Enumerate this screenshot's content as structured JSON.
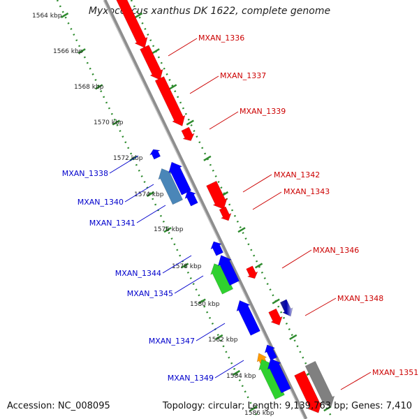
{
  "header": {
    "title": "Myxococcus xanthus DK 1622, complete genome"
  },
  "footer": {
    "accession": "Accession: NC_008095",
    "summary": "Topology: circular; Length: 9,139,763 bp; Genes: 7,410"
  },
  "colors": {
    "backbone": "#8e8e8e",
    "ticks": "#2e8b2e",
    "forward_label": "#cc0000",
    "reverse_label": "#0000cc"
  },
  "kbp_ticks": [
    "1564 kbp",
    "1566 kbp",
    "1568 kbp",
    "1570 kbp",
    "1572 kbp",
    "1574 kbp",
    "1576 kbp",
    "1578 kbp",
    "1580 kbp",
    "1582 kbp",
    "1584 kbp",
    "1586 kbp"
  ],
  "forward_genes": [
    {
      "label": "MXAN_1336"
    },
    {
      "label": "MXAN_1337"
    },
    {
      "label": "MXAN_1339"
    },
    {
      "label": "MXAN_1342"
    },
    {
      "label": "MXAN_1343"
    },
    {
      "label": "MXAN_1346"
    },
    {
      "label": "MXAN_1348"
    },
    {
      "label": "MXAN_1351"
    }
  ],
  "reverse_genes": [
    {
      "label": "MXAN_1338"
    },
    {
      "label": "MXAN_1340"
    },
    {
      "label": "MXAN_1341"
    },
    {
      "label": "MXAN_1344"
    },
    {
      "label": "MXAN_1345"
    },
    {
      "label": "MXAN_1347"
    },
    {
      "label": "MXAN_1349"
    }
  ]
}
